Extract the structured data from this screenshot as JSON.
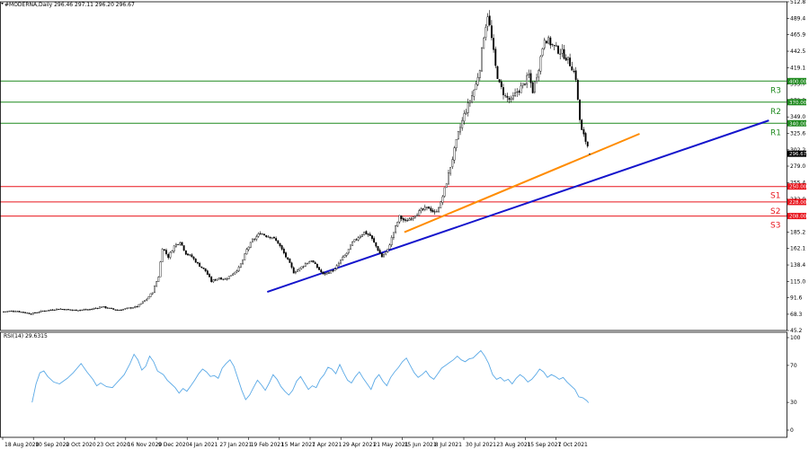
{
  "header": {
    "symbol_line": "#MODERNA,Daily  296.46 297.11 296.20 296.67",
    "rsi_label": "RSI(14) 29.6315"
  },
  "colors": {
    "background": "#ffffff",
    "candle": "#000000",
    "resistance": "#1f8a1f",
    "support": "#e8141c",
    "trend_major": "#1414cc",
    "trend_minor": "#ff8c00",
    "rsi_line": "#5aa9e6",
    "price_tag": "#000000"
  },
  "chart_data": [
    {
      "type": "candlestick",
      "title": "",
      "ylim": [
        45.2,
        512.8
      ],
      "yticks": [
        512.8,
        489.4,
        465.9,
        442.5,
        419.1,
        395.7,
        372.3,
        349.0,
        325.6,
        302.2,
        279.0,
        255.4,
        232.0,
        208.6,
        185.2,
        162.1,
        138.4,
        115.0,
        91.6,
        68.3,
        45.2
      ],
      "x_labels": [
        "18 Aug 2020",
        "10 Sep 2020",
        "2 Oct 2020",
        "23 Oct 2020",
        "16 Nov 2020",
        "9 Dec 2020",
        "4 Jan 2021",
        "27 Jan 2021",
        "19 Feb 2021",
        "15 Mar 2021",
        "7 Apr 2021",
        "29 Apr 2021",
        "21 May 2021",
        "15 Jun 2021",
        "8 Jul 2021",
        "30 Jul 2021",
        "23 Aug 2021",
        "15 Sep 2021",
        "7 Oct 2021"
      ],
      "price_path": [
        [
          0,
          72
        ],
        [
          6,
          73
        ],
        [
          14,
          69
        ],
        [
          20,
          73
        ],
        [
          28,
          76
        ],
        [
          36,
          74
        ],
        [
          44,
          75
        ],
        [
          50,
          79
        ],
        [
          58,
          74
        ],
        [
          64,
          77
        ],
        [
          68,
          79
        ],
        [
          73,
          90
        ],
        [
          76,
          100
        ],
        [
          79,
          122
        ],
        [
          81,
          163
        ],
        [
          84,
          150
        ],
        [
          87,
          165
        ],
        [
          90,
          172
        ],
        [
          93,
          155
        ],
        [
          96,
          150
        ],
        [
          99,
          140
        ],
        [
          103,
          130
        ],
        [
          106,
          115
        ],
        [
          110,
          120
        ],
        [
          113,
          118
        ],
        [
          116,
          124
        ],
        [
          120,
          134
        ],
        [
          122,
          145
        ],
        [
          124,
          160
        ],
        [
          127,
          173
        ],
        [
          131,
          184
        ],
        [
          134,
          180
        ],
        [
          137,
          178
        ],
        [
          140,
          170
        ],
        [
          143,
          155
        ],
        [
          146,
          140
        ],
        [
          148,
          128
        ],
        [
          151,
          133
        ],
        [
          154,
          140
        ],
        [
          157,
          145
        ],
        [
          160,
          135
        ],
        [
          163,
          125
        ],
        [
          166,
          128
        ],
        [
          169,
          132
        ],
        [
          172,
          145
        ],
        [
          175,
          155
        ],
        [
          178,
          170
        ],
        [
          181,
          178
        ],
        [
          184,
          185
        ],
        [
          187,
          180
        ],
        [
          190,
          165
        ],
        [
          193,
          150
        ],
        [
          196,
          160
        ],
        [
          199,
          185
        ],
        [
          202,
          207
        ],
        [
          205,
          200
        ],
        [
          208,
          206
        ],
        [
          211,
          212
        ],
        [
          214,
          217
        ],
        [
          217,
          220
        ],
        [
          220,
          212
        ],
        [
          223,
          226
        ],
        [
          226,
          256
        ],
        [
          229,
          290
        ],
        [
          232,
          325
        ],
        [
          235,
          352
        ],
        [
          238,
          372
        ],
        [
          241,
          395
        ],
        [
          243,
          420
        ],
        [
          245,
          465
        ],
        [
          247,
          495
        ],
        [
          249,
          460
        ],
        [
          251,
          420
        ],
        [
          253,
          395
        ],
        [
          256,
          378
        ],
        [
          259,
          372
        ],
        [
          262,
          385
        ],
        [
          265,
          394
        ],
        [
          268,
          408
        ],
        [
          270,
          386
        ],
        [
          273,
          420
        ],
        [
          276,
          462
        ],
        [
          279,
          454
        ],
        [
          282,
          446
        ],
        [
          285,
          440
        ],
        [
          287,
          434
        ],
        [
          290,
          420
        ],
        [
          292,
          405
        ],
        [
          293,
          372
        ],
        [
          294,
          345
        ],
        [
          295,
          329
        ],
        [
          297,
          315
        ],
        [
          298,
          308
        ],
        [
          299,
          296.67
        ]
      ],
      "levels": [
        {
          "name": "R3",
          "price": 400.0,
          "tag": "400.00",
          "kind": "resistance"
        },
        {
          "name": "R2",
          "price": 370.0,
          "tag": "370.00",
          "kind": "resistance"
        },
        {
          "name": "R1",
          "price": 340.0,
          "tag": "340.00",
          "kind": "resistance"
        },
        {
          "name": "S1",
          "price": 250.0,
          "tag": "250.00",
          "kind": "support"
        },
        {
          "name": "S2",
          "price": 228.0,
          "tag": "228.00",
          "kind": "support"
        },
        {
          "name": "S3",
          "price": 208.0,
          "tag": "208.00",
          "kind": "support"
        }
      ],
      "last_price": 296.67,
      "last_price_tag": "296.67",
      "trendlines": [
        {
          "name": "major-uptrend",
          "start": [
            135,
            100.0
          ],
          "end": [
            391,
            344.0
          ]
        },
        {
          "name": "minor-uptrend",
          "start": [
            205,
            185.0
          ],
          "end": [
            325,
            325.0
          ]
        }
      ]
    },
    {
      "type": "line",
      "title": "",
      "name": "RSI(14)",
      "ylim": [
        0,
        100
      ],
      "yticks": [
        100,
        70,
        30,
        0
      ],
      "current": 29.6315,
      "rsi_path": [
        [
          15,
          30
        ],
        [
          17,
          50
        ],
        [
          19,
          62
        ],
        [
          21,
          64
        ],
        [
          23,
          58
        ],
        [
          26,
          52
        ],
        [
          29,
          50
        ],
        [
          33,
          56
        ],
        [
          36,
          62
        ],
        [
          40,
          72
        ],
        [
          43,
          63
        ],
        [
          46,
          55
        ],
        [
          48,
          48
        ],
        [
          50,
          51
        ],
        [
          53,
          47
        ],
        [
          56,
          46
        ],
        [
          59,
          53
        ],
        [
          62,
          60
        ],
        [
          65,
          72
        ],
        [
          67,
          82
        ],
        [
          69,
          76
        ],
        [
          71,
          65
        ],
        [
          73,
          69
        ],
        [
          75,
          80
        ],
        [
          77,
          74
        ],
        [
          79,
          64
        ],
        [
          82,
          60
        ],
        [
          84,
          54
        ],
        [
          86,
          50
        ],
        [
          88,
          46
        ],
        [
          90,
          40
        ],
        [
          92,
          45
        ],
        [
          94,
          42
        ],
        [
          96,
          48
        ],
        [
          98,
          54
        ],
        [
          100,
          61
        ],
        [
          102,
          66
        ],
        [
          104,
          63
        ],
        [
          106,
          58
        ],
        [
          108,
          59
        ],
        [
          110,
          56
        ],
        [
          112,
          67
        ],
        [
          114,
          72
        ],
        [
          116,
          76
        ],
        [
          118,
          69
        ],
        [
          120,
          56
        ],
        [
          122,
          43
        ],
        [
          124,
          33
        ],
        [
          126,
          38
        ],
        [
          128,
          46
        ],
        [
          130,
          54
        ],
        [
          132,
          49
        ],
        [
          134,
          43
        ],
        [
          136,
          51
        ],
        [
          138,
          60
        ],
        [
          140,
          55
        ],
        [
          142,
          47
        ],
        [
          144,
          42
        ],
        [
          146,
          38
        ],
        [
          148,
          43
        ],
        [
          150,
          53
        ],
        [
          152,
          58
        ],
        [
          154,
          51
        ],
        [
          156,
          44
        ],
        [
          158,
          48
        ],
        [
          160,
          46
        ],
        [
          162,
          55
        ],
        [
          164,
          60
        ],
        [
          166,
          68
        ],
        [
          168,
          66
        ],
        [
          170,
          61
        ],
        [
          172,
          71
        ],
        [
          174,
          62
        ],
        [
          176,
          54
        ],
        [
          178,
          51
        ],
        [
          180,
          58
        ],
        [
          182,
          63
        ],
        [
          184,
          56
        ],
        [
          186,
          50
        ],
        [
          188,
          44
        ],
        [
          190,
          55
        ],
        [
          192,
          60
        ],
        [
          194,
          53
        ],
        [
          196,
          48
        ],
        [
          198,
          57
        ],
        [
          200,
          63
        ],
        [
          202,
          68
        ],
        [
          204,
          74
        ],
        [
          206,
          78
        ],
        [
          208,
          70
        ],
        [
          210,
          62
        ],
        [
          212,
          57
        ],
        [
          214,
          60
        ],
        [
          216,
          64
        ],
        [
          218,
          58
        ],
        [
          220,
          55
        ],
        [
          222,
          61
        ],
        [
          224,
          67
        ],
        [
          226,
          70
        ],
        [
          228,
          73
        ],
        [
          230,
          76
        ],
        [
          232,
          80
        ],
        [
          234,
          76
        ],
        [
          236,
          74
        ],
        [
          238,
          77
        ],
        [
          240,
          78
        ],
        [
          242,
          82
        ],
        [
          244,
          86
        ],
        [
          246,
          80
        ],
        [
          248,
          72
        ],
        [
          250,
          60
        ],
        [
          252,
          55
        ],
        [
          254,
          57
        ],
        [
          256,
          53
        ],
        [
          258,
          55
        ],
        [
          260,
          50
        ],
        [
          262,
          56
        ],
        [
          264,
          60
        ],
        [
          266,
          57
        ],
        [
          268,
          52
        ],
        [
          270,
          55
        ],
        [
          272,
          60
        ],
        [
          274,
          66
        ],
        [
          276,
          63
        ],
        [
          278,
          57
        ],
        [
          280,
          60
        ],
        [
          282,
          58
        ],
        [
          284,
          55
        ],
        [
          286,
          57
        ],
        [
          288,
          52
        ],
        [
          290,
          48
        ],
        [
          292,
          44
        ],
        [
          294,
          36
        ],
        [
          296,
          35
        ],
        [
          298,
          32
        ],
        [
          299,
          29.6315
        ]
      ]
    }
  ]
}
